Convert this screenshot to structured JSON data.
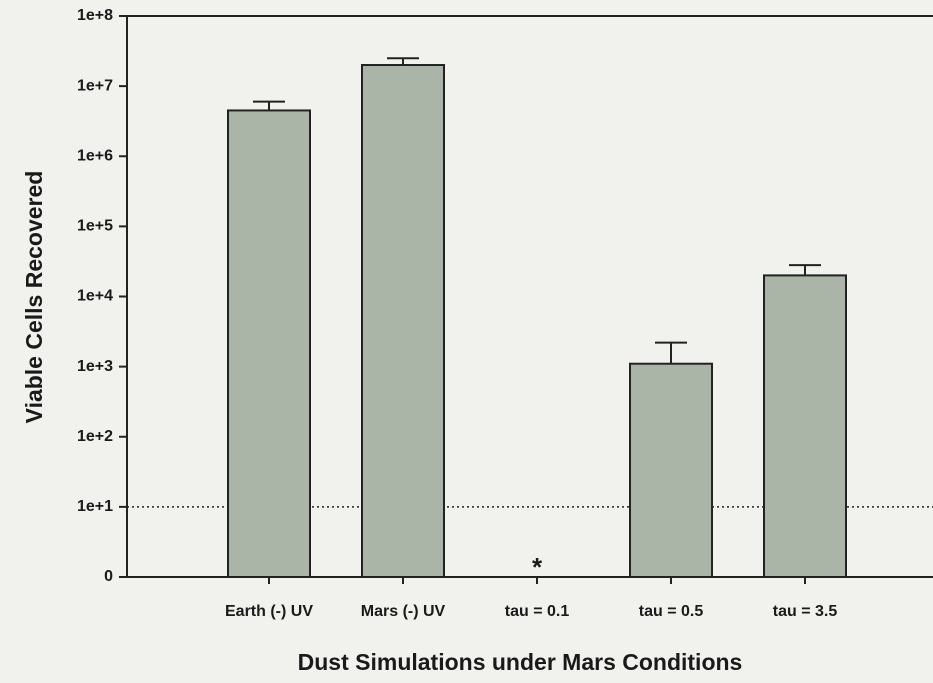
{
  "chart_data": {
    "type": "bar",
    "x_label": "Dust Simulations under Mars Conditions",
    "y_label": "Viable Cells Recovered",
    "categories": [
      "Earth (-) UV",
      "Mars (-) UV",
      "tau = 0.1",
      "tau = 0.5",
      "tau = 3.5"
    ],
    "values": [
      4500000,
      20000000,
      null,
      1100,
      20000
    ],
    "errors": [
      1500000,
      5000000,
      null,
      1100,
      8000
    ],
    "color": "#aab5a7",
    "log_scale": true,
    "ylim": [
      1,
      100000000
    ],
    "yticks": [
      {
        "value": 1,
        "label": "0"
      },
      {
        "value": 10,
        "label": "1e+1"
      },
      {
        "value": 100,
        "label": "1e+2"
      },
      {
        "value": 1000,
        "label": "1e+3"
      },
      {
        "value": 10000,
        "label": "1e+4"
      },
      {
        "value": 100000,
        "label": "1e+5"
      },
      {
        "value": 1000000,
        "label": "1e+6"
      },
      {
        "value": 10000000,
        "label": "1e+7"
      },
      {
        "value": 100000000,
        "label": "1e+8"
      }
    ],
    "reference_line": 10,
    "annotations": [
      {
        "text": "*",
        "category": 2
      }
    ]
  }
}
